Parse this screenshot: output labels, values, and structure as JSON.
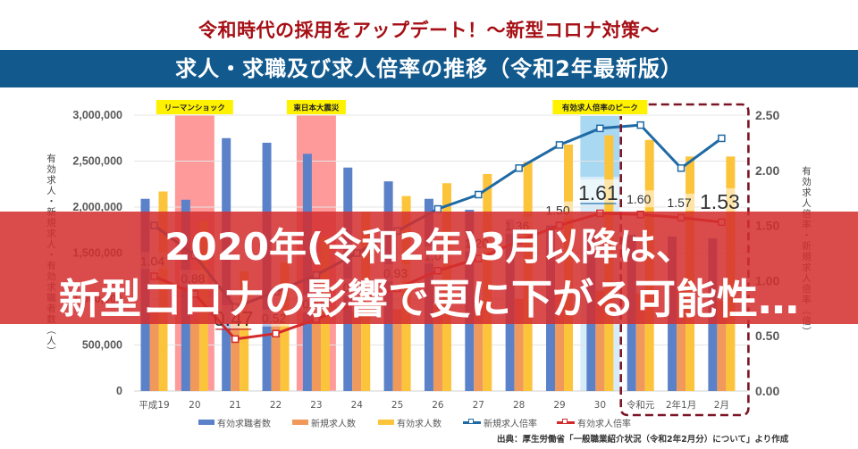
{
  "header": {
    "title": "令和時代の採用をアップデート！～新型コロナ対策～",
    "subtitle": "求人・求職及び求人倍率の推移（令和2年最新版）"
  },
  "banner": {
    "line1": "2020年(令和2年)3月以降は、",
    "line2": "新型コロナの影響で更に下がる可能性…"
  },
  "source": "出典：厚生労働省「一般職業紹介状況（令和2年2月分）について」より作成",
  "colors": {
    "title": "#a50f15",
    "band": "#125a8e",
    "banner": "#d42e2e",
    "focus_box": "#7b1525"
  },
  "chart_data": {
    "type": "bar",
    "title": "求人・求職及び求人倍率の推移（令和2年最新版）",
    "categories": [
      "平成19",
      "20",
      "21",
      "22",
      "23",
      "24",
      "25",
      "26",
      "27",
      "28",
      "29",
      "30",
      "令和元",
      "2年1月",
      "2月"
    ],
    "series": [
      {
        "name": "有効求職者数",
        "type": "bar",
        "axis": "left",
        "color": "#5b82c9",
        "values": [
          2090000,
          2080000,
          2750000,
          2700000,
          2580000,
          2430000,
          2280000,
          2090000,
          1970000,
          1870000,
          1800000,
          1740000,
          1700000,
          1680000,
          1660000
        ]
      },
      {
        "name": "新規求人数",
        "type": "bar",
        "axis": "left",
        "color": "#f0995a",
        "values": [
          880000,
          780000,
          750000,
          780000,
          820000,
          860000,
          890000,
          930000,
          960000,
          1000000,
          1060000,
          1090000,
          1060000,
          1100000,
          980000
        ]
      },
      {
        "name": "有効求人数",
        "type": "bar",
        "axis": "left",
        "color": "#fcc43a",
        "values": [
          2170000,
          1850000,
          1300000,
          1400000,
          1680000,
          1950000,
          2120000,
          2260000,
          2360000,
          2490000,
          2680000,
          2780000,
          2730000,
          2550000,
          2550000
        ]
      },
      {
        "name": "新規求人倍率",
        "type": "line",
        "axis": "right",
        "color": "#1f6aa5",
        "values": [
          1.5,
          1.23,
          0.76,
          0.9,
          1.05,
          1.25,
          1.45,
          1.65,
          1.78,
          2.02,
          2.23,
          2.38,
          2.41,
          2.02,
          2.29
        ]
      },
      {
        "name": "有効求人倍率",
        "type": "line",
        "axis": "right",
        "color": "#d42a2a",
        "values": [
          1.04,
          0.88,
          0.47,
          0.52,
          0.65,
          0.8,
          0.93,
          1.09,
          1.2,
          1.36,
          1.5,
          1.61,
          1.6,
          1.57,
          1.53
        ]
      }
    ],
    "y_left": {
      "label": "有効求人・新規求人・有効求職者数（人）",
      "range": [
        0,
        3000000
      ],
      "ticks": [
        0,
        500000,
        1000000,
        1500000,
        2000000,
        2500000,
        3000000
      ],
      "tick_labels": [
        "0",
        "500,000",
        "1,000,000",
        "1,500,000",
        "2,000,000",
        "2,500,000",
        "3,000,000"
      ]
    },
    "y_right": {
      "label": "有効求人倍率・新規求人倍率（倍）",
      "range": [
        0,
        2.5
      ],
      "ticks": [
        0,
        0.5,
        1.0,
        1.5,
        2.0,
        2.5
      ],
      "tick_labels": [
        "0.00",
        "0.50",
        "1.00",
        "1.50",
        "2.00",
        "2.50"
      ]
    },
    "grid": true,
    "legend": "bottom",
    "annotations": [
      {
        "text": "リーマンショック",
        "category": "20",
        "label_color": "#fff200",
        "shade_color": "#ff9a9a"
      },
      {
        "text": "東日本大震災",
        "category": "23",
        "label_color": "#fff200",
        "shade_color": "#ff9a9a"
      },
      {
        "text": "有効求人倍率のピーク",
        "category": "30",
        "label_color": "#fff200",
        "shade_color": "#a9d8f2"
      }
    ],
    "focus_range": {
      "from": "令和元",
      "to": "2月",
      "style": "dashed-box",
      "color": "#7b1525"
    },
    "data_labels": [
      {
        "series": "有効求人倍率",
        "category": "平成19",
        "text": "1.04"
      },
      {
        "series": "有効求人倍率",
        "category": "20",
        "text": "0.88"
      },
      {
        "series": "有効求人倍率",
        "category": "21",
        "text": "0.47",
        "emphasis_color": "#c8202a",
        "underline": true
      },
      {
        "series": "有効求人倍率",
        "category": "22",
        "text": "0.52"
      },
      {
        "series": "有効求人倍率",
        "category": "23",
        "text": "0.65"
      },
      {
        "series": "有効求人倍率",
        "category": "24",
        "text": "0.80"
      },
      {
        "series": "有効求人倍率",
        "category": "25",
        "text": "0.93"
      },
      {
        "series": "有効求人倍率",
        "category": "26",
        "text": "1.09"
      },
      {
        "series": "有効求人倍率",
        "category": "27",
        "text": "1.20"
      },
      {
        "series": "有効求人倍率",
        "category": "28",
        "text": "1.36"
      },
      {
        "series": "有効求人倍率",
        "category": "29",
        "text": "1.50"
      },
      {
        "series": "有効求人倍率",
        "category": "30",
        "text": "1.61",
        "emphasis_color": "#2f73b0",
        "underline": true
      },
      {
        "series": "有効求人倍率",
        "category": "令和元",
        "text": "1.60"
      },
      {
        "series": "有効求人倍率",
        "category": "2年1月",
        "text": "1.57"
      },
      {
        "series": "有効求人倍率",
        "category": "2月",
        "text": "1.53",
        "emphasis_color": "#c8202a",
        "underline": false
      }
    ]
  }
}
